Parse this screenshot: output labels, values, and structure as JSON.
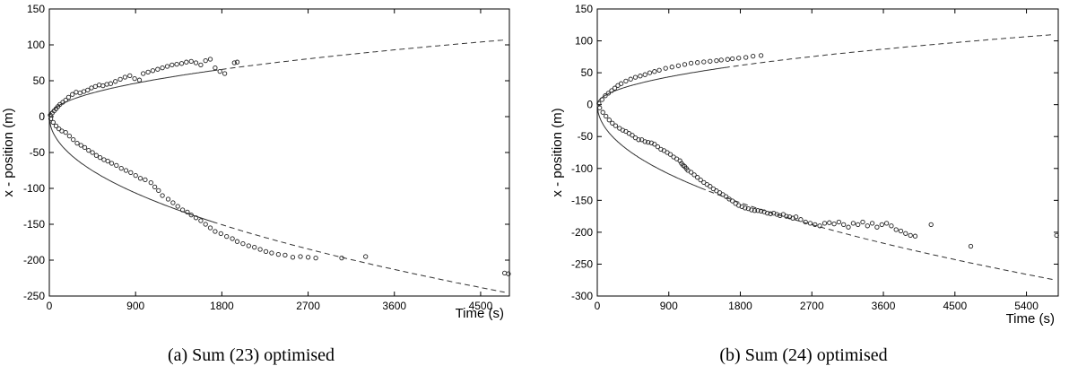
{
  "chart_data": [
    {
      "type": "scatter",
      "caption": "(a) Sum (23) optimised",
      "xlabel": "Time (s)",
      "ylabel": "x - position (m)",
      "xlim": [
        0,
        4800
      ],
      "ylim": [
        -250,
        150
      ],
      "xticks": [
        0,
        900,
        1800,
        2700,
        3600,
        4500
      ],
      "yticks": [
        150,
        100,
        50,
        0,
        -50,
        -100,
        -150,
        -200,
        -250
      ],
      "grid": false,
      "fits": [
        {
          "branch": "upper",
          "coef": 1.55,
          "solid_until": 1700,
          "dashed_until": 4750
        },
        {
          "branch": "lower",
          "coef": -3.55,
          "solid_until": 1700,
          "dashed_until": 4750
        }
      ],
      "series": [
        {
          "points": [
            [
              10,
              2
            ],
            [
              30,
              5
            ],
            [
              50,
              8
            ],
            [
              70,
              11
            ],
            [
              90,
              14
            ],
            [
              110,
              17
            ],
            [
              140,
              20
            ],
            [
              170,
              23
            ],
            [
              200,
              27
            ],
            [
              240,
              31
            ],
            [
              280,
              34
            ],
            [
              320,
              33
            ],
            [
              360,
              35
            ],
            [
              400,
              37
            ],
            [
              440,
              40
            ],
            [
              480,
              42
            ],
            [
              520,
              44
            ],
            [
              560,
              43
            ],
            [
              600,
              45
            ],
            [
              640,
              46
            ],
            [
              690,
              49
            ],
            [
              740,
              52
            ],
            [
              790,
              55
            ],
            [
              840,
              57
            ],
            [
              890,
              53
            ],
            [
              940,
              51
            ],
            [
              980,
              60
            ],
            [
              1030,
              62
            ],
            [
              1080,
              64
            ],
            [
              1130,
              66
            ],
            [
              1180,
              68
            ],
            [
              1230,
              70
            ],
            [
              1280,
              72
            ],
            [
              1330,
              73
            ],
            [
              1380,
              74
            ],
            [
              1430,
              76
            ],
            [
              1480,
              77
            ],
            [
              1530,
              75
            ],
            [
              1580,
              72
            ],
            [
              1630,
              78
            ],
            [
              1680,
              80
            ],
            [
              1730,
              68
            ],
            [
              1780,
              63
            ],
            [
              1830,
              60
            ],
            [
              1930,
              75
            ],
            [
              1960,
              76
            ],
            [
              15,
              -3
            ],
            [
              40,
              -8
            ],
            [
              70,
              -13
            ],
            [
              100,
              -17
            ],
            [
              130,
              -20
            ],
            [
              170,
              -22
            ],
            [
              210,
              -27
            ],
            [
              250,
              -32
            ],
            [
              290,
              -37
            ],
            [
              330,
              -40
            ],
            [
              370,
              -43
            ],
            [
              410,
              -47
            ],
            [
              450,
              -50
            ],
            [
              490,
              -54
            ],
            [
              530,
              -57
            ],
            [
              570,
              -60
            ],
            [
              610,
              -62
            ],
            [
              650,
              -65
            ],
            [
              700,
              -68
            ],
            [
              750,
              -72
            ],
            [
              800,
              -75
            ],
            [
              850,
              -78
            ],
            [
              900,
              -82
            ],
            [
              950,
              -86
            ],
            [
              1000,
              -88
            ],
            [
              1060,
              -92
            ],
            [
              1100,
              -98
            ],
            [
              1140,
              -103
            ],
            [
              1180,
              -110
            ],
            [
              1240,
              -115
            ],
            [
              1290,
              -120
            ],
            [
              1340,
              -125
            ],
            [
              1390,
              -130
            ],
            [
              1440,
              -133
            ],
            [
              1480,
              -137
            ],
            [
              1530,
              -141
            ],
            [
              1580,
              -145
            ],
            [
              1630,
              -150
            ],
            [
              1680,
              -155
            ],
            [
              1730,
              -160
            ],
            [
              1790,
              -163
            ],
            [
              1850,
              -167
            ],
            [
              1910,
              -170
            ],
            [
              1960,
              -174
            ],
            [
              2020,
              -177
            ],
            [
              2080,
              -180
            ],
            [
              2140,
              -182
            ],
            [
              2200,
              -185
            ],
            [
              2260,
              -188
            ],
            [
              2320,
              -190
            ],
            [
              2390,
              -192
            ],
            [
              2460,
              -193
            ],
            [
              2540,
              -196
            ],
            [
              2620,
              -195
            ],
            [
              2700,
              -196
            ],
            [
              2780,
              -197
            ],
            [
              3050,
              -197
            ],
            [
              3300,
              -195
            ],
            [
              4750,
              -218
            ],
            [
              4790,
              -219
            ]
          ]
        }
      ]
    },
    {
      "type": "scatter",
      "caption": "(b) Sum (24) optimised",
      "xlabel": "Time (s)",
      "ylabel": "x - position (m)",
      "xlim": [
        0,
        5800
      ],
      "ylim": [
        -300,
        150
      ],
      "xticks": [
        0,
        900,
        1800,
        2700,
        3600,
        4500,
        5400
      ],
      "yticks": [
        150,
        100,
        50,
        0,
        -50,
        -100,
        -150,
        -200,
        -250,
        -300
      ],
      "grid": false,
      "fits": [
        {
          "branch": "upper",
          "coef": 1.45,
          "solid_until": 1600,
          "dashed_until": 5750
        },
        {
          "branch": "lower",
          "coef": -3.62,
          "solid_until": 1300,
          "dashed_until": 5750
        }
      ],
      "series": [
        {
          "points": [
            [
              20,
              2
            ],
            [
              60,
              8
            ],
            [
              100,
              14
            ],
            [
              140,
              18
            ],
            [
              180,
              22
            ],
            [
              220,
              26
            ],
            [
              260,
              30
            ],
            [
              300,
              33
            ],
            [
              360,
              37
            ],
            [
              420,
              40
            ],
            [
              480,
              43
            ],
            [
              540,
              45
            ],
            [
              600,
              47
            ],
            [
              660,
              50
            ],
            [
              720,
              52
            ],
            [
              780,
              54
            ],
            [
              860,
              57
            ],
            [
              940,
              59
            ],
            [
              1020,
              61
            ],
            [
              1100,
              63
            ],
            [
              1180,
              65
            ],
            [
              1260,
              66
            ],
            [
              1340,
              67
            ],
            [
              1420,
              68
            ],
            [
              1500,
              69
            ],
            [
              1560,
              70
            ],
            [
              1640,
              71
            ],
            [
              1700,
              72
            ],
            [
              1780,
              73
            ],
            [
              1870,
              74
            ],
            [
              1960,
              76
            ],
            [
              2060,
              77
            ],
            [
              30,
              -5
            ],
            [
              70,
              -12
            ],
            [
              110,
              -18
            ],
            [
              150,
              -24
            ],
            [
              190,
              -29
            ],
            [
              230,
              -33
            ],
            [
              280,
              -37
            ],
            [
              320,
              -40
            ],
            [
              360,
              -42
            ],
            [
              400,
              -45
            ],
            [
              440,
              -48
            ],
            [
              480,
              -52
            ],
            [
              520,
              -55
            ],
            [
              560,
              -55
            ],
            [
              600,
              -58
            ],
            [
              640,
              -59
            ],
            [
              680,
              -60
            ],
            [
              720,
              -62
            ],
            [
              760,
              -66
            ],
            [
              800,
              -70
            ],
            [
              840,
              -72
            ],
            [
              880,
              -75
            ],
            [
              920,
              -78
            ],
            [
              960,
              -82
            ],
            [
              1000,
              -85
            ],
            [
              1040,
              -88
            ],
            [
              1060,
              -92
            ],
            [
              1080,
              -95
            ],
            [
              1100,
              -97
            ],
            [
              1120,
              -100
            ],
            [
              1140,
              -103
            ],
            [
              1180,
              -106
            ],
            [
              1220,
              -110
            ],
            [
              1260,
              -114
            ],
            [
              1300,
              -118
            ],
            [
              1340,
              -122
            ],
            [
              1380,
              -125
            ],
            [
              1420,
              -128
            ],
            [
              1460,
              -132
            ],
            [
              1500,
              -135
            ],
            [
              1540,
              -138
            ],
            [
              1580,
              -141
            ],
            [
              1620,
              -144
            ],
            [
              1660,
              -148
            ],
            [
              1700,
              -151
            ],
            [
              1740,
              -155
            ],
            [
              1780,
              -158
            ],
            [
              1820,
              -160
            ],
            [
              1860,
              -162
            ],
            [
              1900,
              -163
            ],
            [
              1940,
              -165
            ],
            [
              1980,
              -166
            ],
            [
              2020,
              -166
            ],
            [
              2060,
              -167
            ],
            [
              2100,
              -168
            ],
            [
              2140,
              -170
            ],
            [
              2180,
              -171
            ],
            [
              2220,
              -170
            ],
            [
              2260,
              -172
            ],
            [
              2300,
              -174
            ],
            [
              2340,
              -172
            ],
            [
              2380,
              -175
            ],
            [
              2420,
              -176
            ],
            [
              2460,
              -178
            ],
            [
              2500,
              -176
            ],
            [
              2560,
              -180
            ],
            [
              2620,
              -184
            ],
            [
              2680,
              -186
            ],
            [
              2740,
              -188
            ],
            [
              2800,
              -190
            ],
            [
              2860,
              -186
            ],
            [
              2920,
              -185
            ],
            [
              2980,
              -187
            ],
            [
              3040,
              -184
            ],
            [
              3100,
              -188
            ],
            [
              3160,
              -192
            ],
            [
              3220,
              -186
            ],
            [
              3280,
              -188
            ],
            [
              3340,
              -184
            ],
            [
              3400,
              -190
            ],
            [
              3460,
              -186
            ],
            [
              3520,
              -192
            ],
            [
              3580,
              -188
            ],
            [
              3640,
              -186
            ],
            [
              3700,
              -190
            ],
            [
              3760,
              -196
            ],
            [
              3820,
              -198
            ],
            [
              3880,
              -202
            ],
            [
              3940,
              -205
            ],
            [
              4000,
              -206
            ],
            [
              4200,
              -188
            ],
            [
              4700,
              -222
            ],
            [
              5780,
              -205
            ]
          ]
        }
      ]
    }
  ]
}
